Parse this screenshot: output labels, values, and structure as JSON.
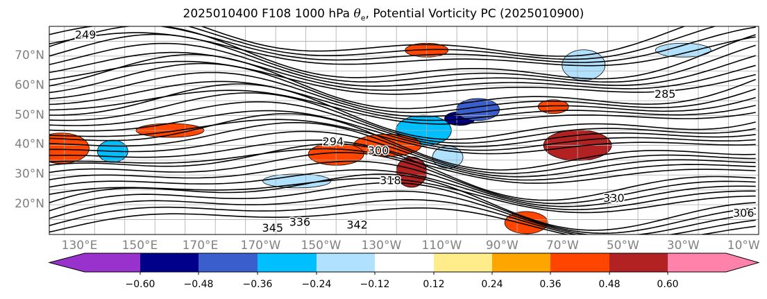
{
  "title_pre": "2025010400 F108 1000 hPa ",
  "title_sym": "θ",
  "title_sub": "e",
  "title_post": ", Potential Vorticity PC (2025010900)",
  "chart_data": {
    "type": "contour-map",
    "variable_filled": "Potential Vorticity PC",
    "variable_contour": "1000 hPa theta-e",
    "lat_ticks": [
      "20°N",
      "30°N",
      "40°N",
      "50°N",
      "60°N",
      "70°N"
    ],
    "lat_values": [
      20,
      30,
      40,
      50,
      60,
      70
    ],
    "lon_ticks": [
      "130°E",
      "150°E",
      "170°E",
      "170°W",
      "150°W",
      "130°W",
      "110°W",
      "90°W",
      "70°W",
      "50°W",
      "30°W",
      "10°W"
    ],
    "lon_values": [
      130,
      150,
      170,
      190,
      210,
      230,
      250,
      270,
      290,
      310,
      330,
      350
    ],
    "lon_range": [
      120,
      355
    ],
    "lat_range": [
      10,
      80
    ],
    "contour_labels": [
      {
        "text": "249",
        "lon": 132,
        "lat": 77
      },
      {
        "text": "285",
        "lon": 324,
        "lat": 57
      },
      {
        "text": "294",
        "lon": 214,
        "lat": 41
      },
      {
        "text": "336",
        "lon": 203,
        "lat": 14
      },
      {
        "text": "342",
        "lon": 222,
        "lat": 13
      },
      {
        "text": "345",
        "lon": 194,
        "lat": 12
      },
      {
        "text": "330",
        "lon": 307,
        "lat": 22
      },
      {
        "text": "306",
        "lon": 350,
        "lat": 17
      },
      {
        "text": "300",
        "lon": 229,
        "lat": 38
      },
      {
        "text": "318",
        "lon": 233,
        "lat": 28
      }
    ],
    "filled_regions": [
      {
        "value": -0.6,
        "lon": 256,
        "lat": 49
      },
      {
        "value": -0.48,
        "lon": 262,
        "lat": 52
      },
      {
        "value": -0.36,
        "lon": 244,
        "lat": 45
      },
      {
        "value": -0.24,
        "lon": 202,
        "lat": 28
      },
      {
        "value": -0.24,
        "lon": 252,
        "lat": 36
      },
      {
        "value": -0.24,
        "lon": 297,
        "lat": 67
      },
      {
        "value": -0.24,
        "lon": 330,
        "lat": 72
      },
      {
        "value": 0.36,
        "lon": 232,
        "lat": 40
      },
      {
        "value": 0.48,
        "lon": 240,
        "lat": 31
      },
      {
        "value": 0.36,
        "lon": 245,
        "lat": 72
      },
      {
        "value": 0.36,
        "lon": 215,
        "lat": 37
      },
      {
        "value": 0.48,
        "lon": 295,
        "lat": 40
      },
      {
        "value": 0.36,
        "lon": 287,
        "lat": 53
      },
      {
        "value": 0.36,
        "lon": 278,
        "lat": 14
      },
      {
        "value": 0.36,
        "lon": 124,
        "lat": 39
      },
      {
        "value": 0.36,
        "lon": 160,
        "lat": 45
      },
      {
        "value": -0.36,
        "lon": 141,
        "lat": 38
      }
    ],
    "colorbar": {
      "colors": [
        "#9932CC",
        "#00008B",
        "#3A5FCD",
        "#00BFFF",
        "#B0E2FF",
        "#FFFFFF",
        "#FFEC8B",
        "#FFA500",
        "#FF4500",
        "#B22222",
        "#FF82AB"
      ],
      "tick_labels": [
        "−0.60",
        "−0.48",
        "−0.36",
        "−0.24",
        "−0.12",
        "0.12",
        "0.24",
        "0.36",
        "0.48",
        "0.60"
      ],
      "tick_values": [
        -0.6,
        -0.48,
        -0.36,
        -0.24,
        -0.12,
        0.12,
        0.24,
        0.36,
        0.48,
        0.6
      ],
      "extend": "both"
    }
  }
}
